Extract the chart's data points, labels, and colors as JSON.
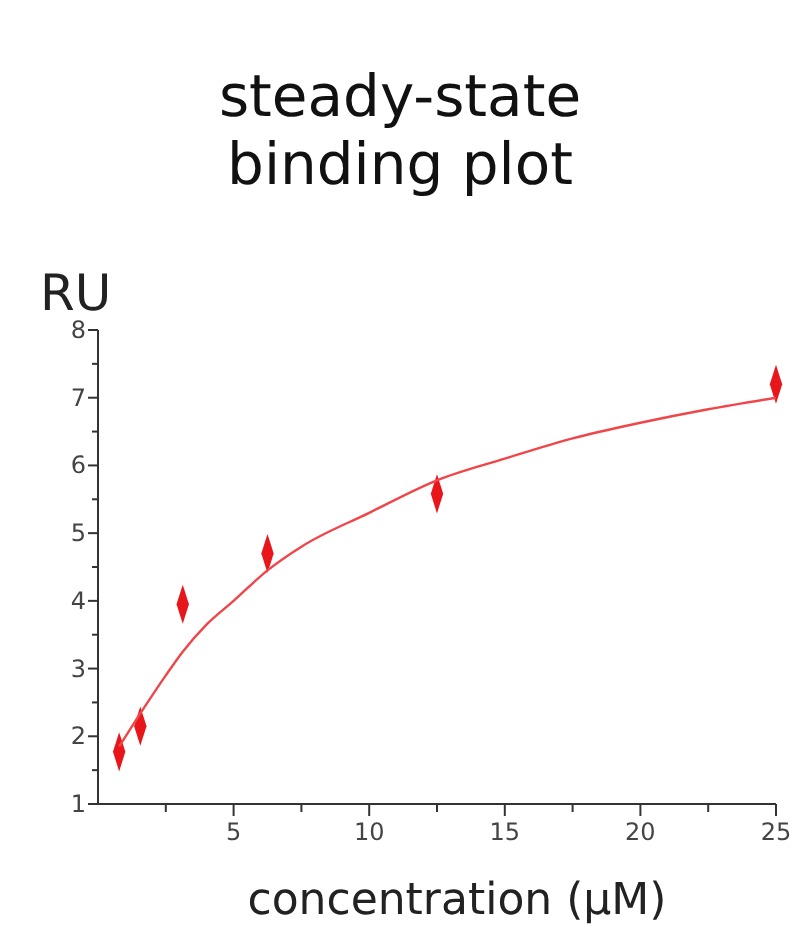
{
  "chart_data": {
    "type": "scatter",
    "title": "steady-state\nbinding plot",
    "xlabel": "concentration (µM)",
    "ylabel": "RU",
    "xlim": [
      0,
      25
    ],
    "xticks": [
      {
        "value": 2.5,
        "label": null
      },
      5,
      {
        "value": 7.5,
        "label": null
      },
      10,
      {
        "value": 12.5,
        "label": null
      },
      15,
      {
        "value": 17.5,
        "label": null
      },
      20,
      {
        "value": 22.5,
        "label": null
      },
      25
    ],
    "ylim": [
      1,
      8
    ],
    "yticks": [
      1,
      {
        "value": 1.5,
        "label": null
      },
      2,
      {
        "value": 2.5,
        "label": null
      },
      3,
      {
        "value": 3.5,
        "label": null
      },
      4,
      {
        "value": 4.5,
        "label": null
      },
      5,
      {
        "value": 5.5,
        "label": null
      },
      6,
      {
        "value": 6.5,
        "label": null
      },
      7,
      {
        "value": 7.5,
        "label": null
      },
      8
    ],
    "grid": false,
    "series": [
      {
        "color": "#e8161b",
        "marker": "diamond",
        "x": [
          0.78,
          1.56,
          3.125,
          6.25,
          12.5,
          25
        ],
        "values": [
          1.77,
          2.15,
          3.95,
          4.7,
          5.58,
          7.2
        ]
      },
      {
        "type": "line",
        "color": "#f0464a",
        "marker": "none",
        "line_style": "solid",
        "x": [
          0.78,
          1.5,
          2.5,
          3.125,
          4,
          5,
          6.25,
          7.5,
          10,
          12.5,
          15,
          17.5,
          20,
          22.5,
          25
        ],
        "values": [
          1.85,
          2.3,
          2.9,
          3.25,
          3.65,
          4.0,
          4.45,
          4.8,
          5.3,
          5.78,
          6.1,
          6.4,
          6.63,
          6.83,
          7.0
        ]
      }
    ]
  }
}
